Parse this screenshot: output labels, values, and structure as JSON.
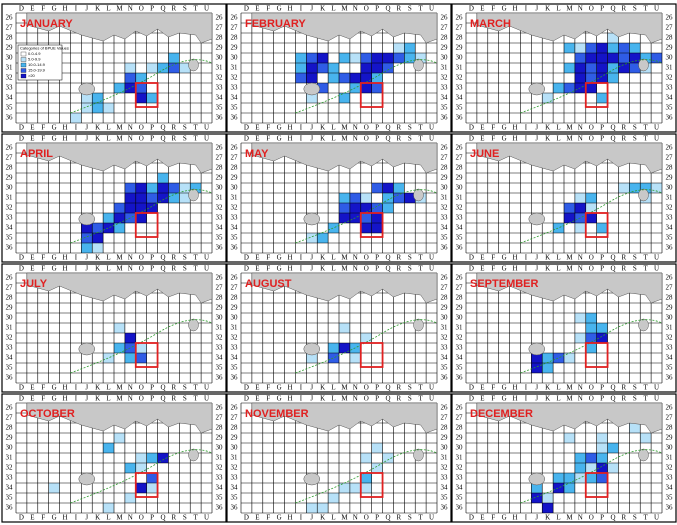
{
  "columns": [
    "D",
    "E",
    "F",
    "G",
    "H",
    "I",
    "J",
    "K",
    "L",
    "M",
    "N",
    "O",
    "P",
    "Q",
    "R",
    "S",
    "T",
    "U"
  ],
  "rows": [
    "26",
    "27",
    "28",
    "29",
    "30",
    "31",
    "32",
    "33",
    "34",
    "35",
    "36"
  ],
  "level_colors": [
    "#b7e1f8",
    "#48b4ee",
    "#2f5ce6",
    "#1414c8"
  ],
  "legend": {
    "title": "Categories of BPUE Values",
    "items": [
      "0.0-4.9",
      "5.0-9.9",
      "10.0-14.9",
      "15.0-19.9",
      ">20"
    ]
  },
  "panels": [
    {
      "month": "JANUARY",
      "cells": [
        [
          10,
          6,
          3
        ],
        [
          11,
          6,
          2
        ],
        [
          10,
          7,
          4
        ],
        [
          11,
          7,
          3
        ],
        [
          9,
          7,
          2
        ],
        [
          11,
          8,
          4
        ],
        [
          12,
          8,
          2
        ],
        [
          7,
          8,
          2
        ],
        [
          6,
          9,
          1
        ],
        [
          7,
          9,
          2
        ],
        [
          8,
          9,
          1
        ],
        [
          13,
          5,
          2
        ],
        [
          14,
          5,
          3
        ],
        [
          14,
          4,
          2
        ],
        [
          15,
          5,
          1
        ],
        [
          12,
          5,
          1
        ],
        [
          10,
          5,
          1
        ],
        [
          5,
          10,
          1
        ],
        [
          6,
          8,
          1
        ]
      ]
    },
    {
      "month": "FEBRUARY",
      "cells": [
        [
          5,
          4,
          2
        ],
        [
          6,
          4,
          3
        ],
        [
          7,
          4,
          4
        ],
        [
          6,
          5,
          4
        ],
        [
          5,
          5,
          2
        ],
        [
          7,
          5,
          3
        ],
        [
          8,
          5,
          2
        ],
        [
          9,
          4,
          2
        ],
        [
          10,
          4,
          1
        ],
        [
          11,
          4,
          3
        ],
        [
          12,
          4,
          4
        ],
        [
          13,
          4,
          4
        ],
        [
          14,
          4,
          3
        ],
        [
          15,
          4,
          2
        ],
        [
          11,
          5,
          4
        ],
        [
          12,
          5,
          4
        ],
        [
          13,
          5,
          3
        ],
        [
          10,
          6,
          4
        ],
        [
          11,
          6,
          4
        ],
        [
          12,
          6,
          2
        ],
        [
          9,
          6,
          3
        ],
        [
          8,
          6,
          2
        ],
        [
          5,
          6,
          3
        ],
        [
          6,
          6,
          4
        ],
        [
          7,
          7,
          3
        ],
        [
          10,
          7,
          2
        ],
        [
          11,
          7,
          4
        ],
        [
          12,
          7,
          3
        ],
        [
          6,
          8,
          1
        ],
        [
          9,
          8,
          2
        ],
        [
          14,
          3,
          1
        ],
        [
          15,
          3,
          2
        ],
        [
          16,
          4,
          1
        ]
      ]
    },
    {
      "month": "MARCH",
      "cells": [
        [
          9,
          3,
          2
        ],
        [
          10,
          3,
          1
        ],
        [
          11,
          3,
          3
        ],
        [
          12,
          3,
          4
        ],
        [
          13,
          3,
          2
        ],
        [
          14,
          3,
          3
        ],
        [
          15,
          3,
          2
        ],
        [
          10,
          4,
          3
        ],
        [
          11,
          4,
          4
        ],
        [
          12,
          4,
          4
        ],
        [
          13,
          4,
          4
        ],
        [
          14,
          4,
          3
        ],
        [
          15,
          4,
          4
        ],
        [
          16,
          4,
          2
        ],
        [
          17,
          4,
          3
        ],
        [
          9,
          5,
          2
        ],
        [
          10,
          5,
          4
        ],
        [
          11,
          5,
          3
        ],
        [
          12,
          5,
          4
        ],
        [
          13,
          5,
          2
        ],
        [
          14,
          5,
          4
        ],
        [
          15,
          5,
          3
        ],
        [
          16,
          5,
          1
        ],
        [
          10,
          6,
          4
        ],
        [
          11,
          6,
          3
        ],
        [
          12,
          6,
          4
        ],
        [
          13,
          6,
          2
        ],
        [
          8,
          7,
          2
        ],
        [
          9,
          7,
          3
        ],
        [
          10,
          7,
          4
        ],
        [
          11,
          7,
          4
        ],
        [
          12,
          8,
          2
        ],
        [
          7,
          8,
          1
        ],
        [
          13,
          2,
          1
        ]
      ]
    },
    {
      "month": "APRIL",
      "cells": [
        [
          10,
          4,
          3
        ],
        [
          11,
          4,
          4
        ],
        [
          12,
          4,
          2
        ],
        [
          13,
          4,
          4
        ],
        [
          14,
          4,
          3
        ],
        [
          15,
          4,
          1
        ],
        [
          16,
          4,
          2
        ],
        [
          10,
          5,
          4
        ],
        [
          11,
          5,
          4
        ],
        [
          12,
          5,
          3
        ],
        [
          13,
          5,
          4
        ],
        [
          14,
          5,
          2
        ],
        [
          9,
          6,
          3
        ],
        [
          10,
          6,
          4
        ],
        [
          11,
          6,
          4
        ],
        [
          12,
          6,
          4
        ],
        [
          8,
          7,
          2
        ],
        [
          9,
          7,
          4
        ],
        [
          10,
          7,
          3
        ],
        [
          11,
          7,
          4
        ],
        [
          6,
          8,
          4
        ],
        [
          7,
          8,
          3
        ],
        [
          8,
          8,
          4
        ],
        [
          9,
          8,
          2
        ],
        [
          6,
          9,
          3
        ],
        [
          7,
          9,
          4
        ],
        [
          6,
          10,
          2
        ],
        [
          7,
          10,
          1
        ],
        [
          13,
          3,
          2
        ],
        [
          15,
          5,
          1
        ]
      ]
    },
    {
      "month": "MAY",
      "cells": [
        [
          9,
          5,
          2
        ],
        [
          10,
          5,
          3
        ],
        [
          11,
          5,
          1
        ],
        [
          12,
          4,
          3
        ],
        [
          13,
          4,
          4
        ],
        [
          14,
          4,
          2
        ],
        [
          15,
          5,
          4
        ],
        [
          16,
          5,
          1
        ],
        [
          9,
          6,
          3
        ],
        [
          10,
          6,
          4
        ],
        [
          11,
          6,
          4
        ],
        [
          12,
          6,
          3
        ],
        [
          13,
          6,
          2
        ],
        [
          9,
          7,
          4
        ],
        [
          10,
          7,
          4
        ],
        [
          11,
          7,
          3
        ],
        [
          12,
          7,
          4
        ],
        [
          8,
          8,
          2
        ],
        [
          11,
          8,
          4
        ],
        [
          12,
          8,
          4
        ],
        [
          6,
          9,
          1
        ],
        [
          7,
          9,
          2
        ],
        [
          14,
          5,
          3
        ],
        [
          13,
          5,
          2
        ]
      ]
    },
    {
      "month": "JUNE",
      "cells": [
        [
          9,
          6,
          3
        ],
        [
          10,
          6,
          4
        ],
        [
          11,
          6,
          1
        ],
        [
          10,
          5,
          1
        ],
        [
          11,
          5,
          2
        ],
        [
          9,
          7,
          4
        ],
        [
          10,
          7,
          3
        ],
        [
          11,
          7,
          4
        ],
        [
          8,
          8,
          2
        ],
        [
          12,
          8,
          2
        ],
        [
          14,
          4,
          1
        ],
        [
          15,
          4,
          2
        ],
        [
          16,
          5,
          1
        ],
        [
          16,
          4,
          2
        ],
        [
          17,
          4,
          1
        ],
        [
          10,
          8,
          1
        ]
      ]
    },
    {
      "month": "JULY",
      "cells": [
        [
          9,
          5,
          1
        ],
        [
          10,
          6,
          4
        ],
        [
          9,
          7,
          2
        ],
        [
          10,
          7,
          3
        ],
        [
          11,
          7,
          1
        ],
        [
          10,
          8,
          2
        ],
        [
          11,
          8,
          3
        ],
        [
          8,
          8,
          1
        ]
      ]
    },
    {
      "month": "AUGUST",
      "cells": [
        [
          9,
          5,
          1
        ],
        [
          8,
          7,
          2
        ],
        [
          9,
          7,
          4
        ],
        [
          10,
          7,
          2
        ],
        [
          8,
          8,
          3
        ],
        [
          10,
          8,
          1
        ],
        [
          6,
          8,
          1
        ],
        [
          11,
          6,
          1
        ]
      ]
    },
    {
      "month": "SEPTEMBER",
      "cells": [
        [
          10,
          4,
          1
        ],
        [
          11,
          4,
          2
        ],
        [
          11,
          5,
          2
        ],
        [
          12,
          5,
          2
        ],
        [
          10,
          6,
          1
        ],
        [
          11,
          6,
          3
        ],
        [
          12,
          6,
          4
        ],
        [
          6,
          8,
          4
        ],
        [
          7,
          8,
          2
        ],
        [
          8,
          8,
          3
        ],
        [
          9,
          8,
          1
        ],
        [
          11,
          7,
          2
        ],
        [
          6,
          9,
          4
        ],
        [
          7,
          9,
          2
        ]
      ]
    },
    {
      "month": "OCTOBER",
      "cells": [
        [
          8,
          4,
          2
        ],
        [
          9,
          3,
          1
        ],
        [
          11,
          5,
          1
        ],
        [
          12,
          5,
          2
        ],
        [
          10,
          6,
          2
        ],
        [
          11,
          6,
          1
        ],
        [
          13,
          5,
          4
        ],
        [
          12,
          7,
          3
        ],
        [
          11,
          8,
          4
        ],
        [
          12,
          8,
          1
        ],
        [
          3,
          8,
          1
        ],
        [
          10,
          9,
          1
        ],
        [
          8,
          10,
          1
        ]
      ]
    },
    {
      "month": "NOVEMBER",
      "cells": [
        [
          12,
          4,
          1
        ],
        [
          11,
          5,
          1
        ],
        [
          12,
          6,
          1
        ],
        [
          11,
          7,
          2
        ],
        [
          10,
          8,
          1
        ],
        [
          11,
          8,
          1
        ],
        [
          9,
          8,
          1
        ],
        [
          8,
          9,
          1
        ],
        [
          6,
          10,
          1
        ],
        [
          7,
          10,
          1
        ],
        [
          13,
          5,
          1
        ]
      ]
    },
    {
      "month": "DECEMBER",
      "cells": [
        [
          9,
          3,
          1
        ],
        [
          12,
          3,
          1
        ],
        [
          13,
          4,
          2
        ],
        [
          12,
          4,
          1
        ],
        [
          10,
          5,
          2
        ],
        [
          11,
          5,
          3
        ],
        [
          12,
          5,
          2
        ],
        [
          10,
          6,
          2
        ],
        [
          11,
          6,
          1
        ],
        [
          12,
          6,
          4
        ],
        [
          13,
          6,
          1
        ],
        [
          8,
          7,
          2
        ],
        [
          9,
          7,
          2
        ],
        [
          10,
          7,
          1
        ],
        [
          11,
          7,
          2
        ],
        [
          12,
          7,
          3
        ],
        [
          8,
          8,
          4
        ],
        [
          9,
          8,
          2
        ],
        [
          6,
          8,
          2
        ],
        [
          7,
          9,
          1
        ],
        [
          6,
          9,
          4
        ],
        [
          7,
          10,
          4
        ],
        [
          16,
          3,
          1
        ],
        [
          15,
          2,
          1
        ]
      ]
    }
  ]
}
